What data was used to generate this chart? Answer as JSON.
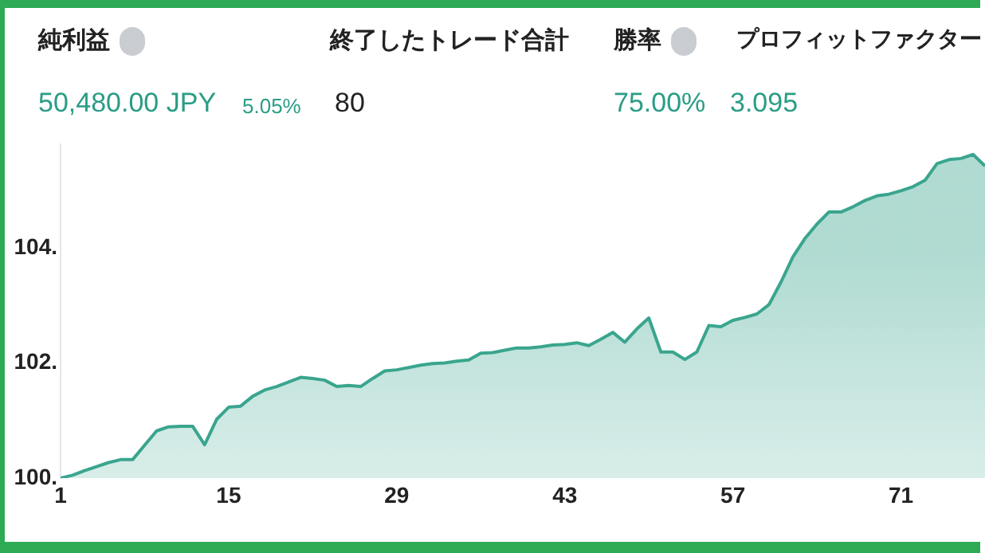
{
  "chart_data": {
    "type": "area",
    "annotations": [
      "純利益",
      "終了したトレード合計",
      "勝率",
      "プロフィットファクター",
      "50,480.00 JPY",
      "5.05%",
      "80",
      "75.00%",
      "3.095"
    ],
    "x": [
      1,
      2,
      3,
      4,
      5,
      6,
      7,
      8,
      9,
      10,
      11,
      12,
      13,
      14,
      15,
      16,
      17,
      18,
      19,
      20,
      21,
      22,
      23,
      24,
      25,
      26,
      27,
      28,
      29,
      30,
      31,
      32,
      33,
      34,
      35,
      36,
      37,
      38,
      39,
      40,
      41,
      42,
      43,
      44,
      45,
      46,
      47,
      48,
      49,
      50,
      51,
      52,
      53,
      54,
      55,
      56,
      57,
      58,
      59,
      60,
      61,
      62,
      63,
      64,
      65,
      66,
      67,
      68,
      69,
      70,
      71,
      72,
      73,
      74,
      75,
      76,
      77,
      78
    ],
    "series": [
      {
        "color": "#3aa58e",
        "values": [
          100.0,
          100.05,
          100.13,
          100.2,
          100.27,
          100.32,
          100.32,
          100.57,
          100.82,
          100.89,
          100.9,
          100.9,
          100.58,
          101.02,
          101.23,
          101.25,
          101.42,
          101.53,
          101.59,
          101.67,
          101.75,
          101.73,
          101.7,
          101.59,
          101.61,
          101.59,
          101.73,
          101.86,
          101.88,
          101.92,
          101.96,
          101.99,
          102.0,
          102.03,
          102.05,
          102.17,
          102.18,
          102.22,
          102.26,
          102.26,
          102.28,
          102.31,
          102.32,
          102.35,
          102.3,
          102.41,
          102.53,
          102.36,
          102.59,
          102.78,
          102.19,
          102.19,
          102.06,
          102.19,
          102.65,
          102.63,
          102.74,
          102.79,
          102.85,
          103.01,
          103.4,
          103.84,
          104.16,
          104.41,
          104.62,
          104.62,
          104.71,
          104.82,
          104.9,
          104.93,
          104.99,
          105.06,
          105.17,
          105.46,
          105.53,
          105.55,
          105.62,
          105.42
        ]
      }
    ],
    "xlim": [
      1,
      78
    ],
    "xticks": [
      1,
      15,
      29,
      43,
      57,
      71
    ],
    "ylim": [
      100,
      105.8
    ],
    "yticks": [
      {
        "value": 100,
        "label": "100."
      },
      {
        "value": 102,
        "label": "102."
      },
      {
        "value": 104,
        "label": "104."
      }
    ],
    "grid": false,
    "legend": false,
    "marker": "none",
    "line_style": "solid"
  }
}
